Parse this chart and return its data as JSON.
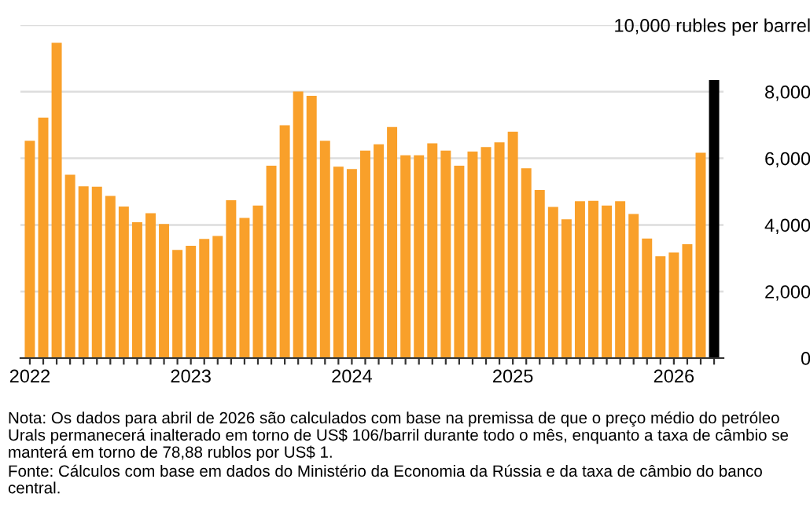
{
  "chart_data": {
    "type": "bar",
    "categories": [
      "2022",
      null,
      null,
      null,
      null,
      null,
      null,
      null,
      null,
      null,
      null,
      null,
      "2023",
      null,
      null,
      null,
      null,
      null,
      null,
      null,
      null,
      null,
      null,
      null,
      "2024",
      null,
      null,
      null,
      null,
      null,
      null,
      null,
      null,
      null,
      null,
      null,
      "2025",
      null,
      null,
      null,
      null,
      null,
      null,
      null,
      null,
      null,
      null,
      null,
      "2026",
      null,
      null,
      null
    ],
    "values": [
      6530,
      7220,
      9470,
      5510,
      5160,
      5150,
      4870,
      4550,
      4080,
      4350,
      4030,
      3250,
      3370,
      3580,
      3670,
      4740,
      4210,
      4580,
      5780,
      6990,
      8010,
      7880,
      6530,
      5750,
      5680,
      6230,
      6420,
      6940,
      6090,
      6090,
      6450,
      6230,
      5780,
      6200,
      6340,
      6480,
      6800,
      5700,
      5050,
      4540,
      4170,
      4710,
      4720,
      4580,
      4710,
      4330,
      3590,
      3060,
      3170,
      3420,
      6170,
      8350
    ],
    "colors": [
      "#f9a02a",
      "#f9a02a",
      "#f9a02a",
      "#f9a02a",
      "#f9a02a",
      "#f9a02a",
      "#f9a02a",
      "#f9a02a",
      "#f9a02a",
      "#f9a02a",
      "#f9a02a",
      "#f9a02a",
      "#f9a02a",
      "#f9a02a",
      "#f9a02a",
      "#f9a02a",
      "#f9a02a",
      "#f9a02a",
      "#f9a02a",
      "#f9a02a",
      "#f9a02a",
      "#f9a02a",
      "#f9a02a",
      "#f9a02a",
      "#f9a02a",
      "#f9a02a",
      "#f9a02a",
      "#f9a02a",
      "#f9a02a",
      "#f9a02a",
      "#f9a02a",
      "#f9a02a",
      "#f9a02a",
      "#f9a02a",
      "#f9a02a",
      "#f9a02a",
      "#f9a02a",
      "#f9a02a",
      "#f9a02a",
      "#f9a02a",
      "#f9a02a",
      "#f9a02a",
      "#f9a02a",
      "#f9a02a",
      "#f9a02a",
      "#f9a02a",
      "#f9a02a",
      "#f9a02a",
      "#f9a02a",
      "#f9a02a",
      "#f9a02a",
      "#000000"
    ],
    "ylim": [
      0,
      10000
    ],
    "yticks": [
      0,
      {
        "value": 2000,
        "label": "2,000"
      },
      {
        "value": 4000,
        "label": "4,000"
      },
      {
        "value": 6000,
        "label": "6,000"
      },
      {
        "value": 8000,
        "label": "8,000"
      },
      {
        "value": 10000,
        "label": "10,000 rubles per barrel"
      }
    ],
    "grid": "y",
    "annotations": [
      "Nota: Os dados para abril de 2026 são calculados com base na premissa de que o preço médio do petróleo Urals permanecerá inalterado em torno de US$ 106/barril durante todo o mês, enquanto a taxa de câmbio se manterá em torno de 78,88 rublos por US$ 1.",
      "Fonte: Cálculos com base em dados do Ministério da Economia da Rússia e da taxa de câmbio do banco central."
    ]
  }
}
